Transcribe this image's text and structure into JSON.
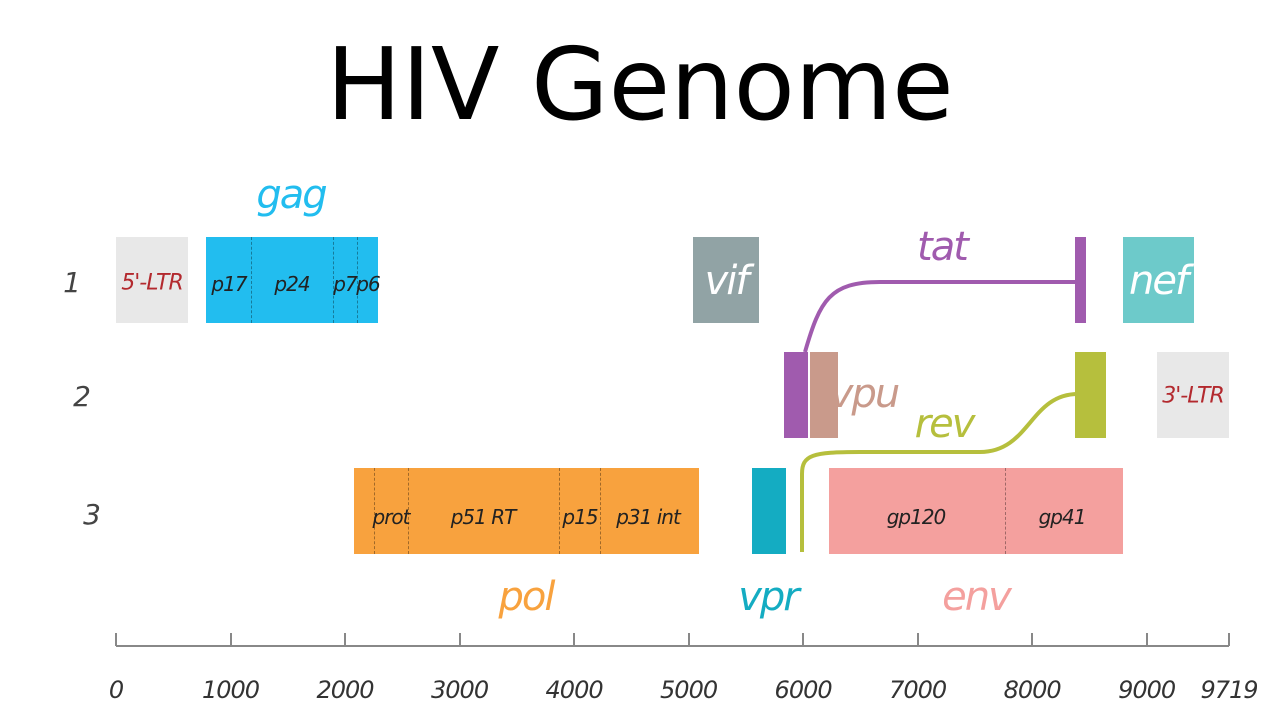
{
  "title": "HIV Genome",
  "colors": {
    "gag": "#22bdef",
    "pol": "#f8a23e",
    "vif": "#91a3a5",
    "vpr": "#14acc2",
    "tat": "#a05bae",
    "rev": "#b6bf3d",
    "vpu": "#c99a8b",
    "env": "#f4a09e",
    "nef": "#6dcaca",
    "ltr_box": "#e8e8e8",
    "ltr_text": "#b3292e",
    "axis": "#888888"
  },
  "rows": [
    "1",
    "2",
    "3"
  ],
  "axis": {
    "ticks": [
      "0",
      "1000",
      "2000",
      "3000",
      "4000",
      "5000",
      "6000",
      "7000",
      "8000",
      "9000",
      "9719"
    ]
  },
  "ltr5": "5'-LTR",
  "ltr3": "3'-LTR",
  "gag": {
    "name": "gag",
    "parts": [
      "p17",
      "p24",
      "p7",
      "p6"
    ]
  },
  "pol": {
    "name": "pol",
    "parts": [
      "prot",
      "p51 RT",
      "p15",
      "p31 int"
    ]
  },
  "env": {
    "name": "env",
    "parts": [
      "gp120",
      "gp41"
    ]
  },
  "vif": "vif",
  "vpr": "vpr",
  "vpu": "vpu",
  "tat": "tat",
  "rev": "rev",
  "nef": "nef"
}
